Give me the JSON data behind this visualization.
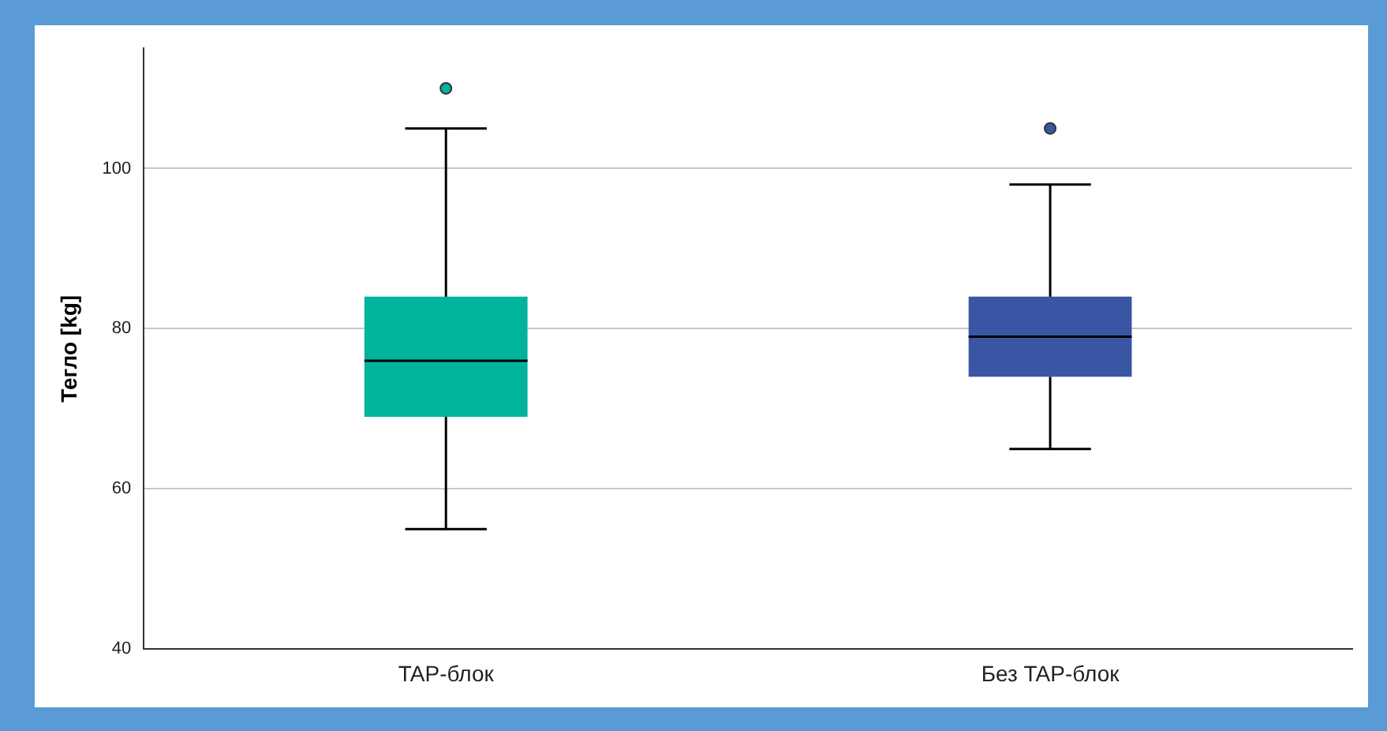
{
  "chart_data": {
    "type": "box",
    "ylabel": "Тегло [kg]",
    "categories": [
      "TAP-блок",
      "Без TAP-блок"
    ],
    "boxes": [
      {
        "low": 55,
        "q1": 69,
        "median": 76,
        "q3": 84,
        "high": 105,
        "outliers": [
          110
        ]
      },
      {
        "low": 65,
        "q1": 74,
        "median": 79,
        "q3": 84,
        "high": 98,
        "outliers": [
          105
        ]
      }
    ],
    "colors": [
      "#00b39d",
      "#3a55a4"
    ],
    "ylim": [
      40,
      115
    ],
    "yticks": [
      40,
      60,
      80,
      100
    ],
    "grid": "y"
  }
}
